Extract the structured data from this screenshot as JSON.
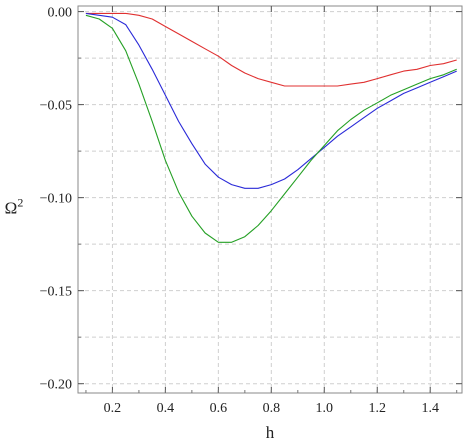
{
  "chart_data": {
    "type": "line",
    "title": "",
    "xlabel": "h",
    "ylabel_base": "Ω",
    "ylabel_sup": "2",
    "xlim": [
      0.07,
      1.52
    ],
    "ylim": [
      -0.205,
      0.003
    ],
    "xticks": [
      0.2,
      0.4,
      0.6,
      0.8,
      1.0,
      1.2,
      1.4
    ],
    "xtick_labels": [
      "0.2",
      "0.4",
      "0.6",
      "0.8",
      "1.0",
      "1.2",
      "1.4"
    ],
    "yticks": [
      0.0,
      -0.05,
      -0.1,
      -0.15,
      -0.2
    ],
    "ytick_labels": [
      "0.00",
      "−0.05",
      "−0.10",
      "−0.15",
      "−0.20"
    ],
    "grid": true,
    "series": [
      {
        "color": "#e03030",
        "x": [
          0.1,
          0.15,
          0.2,
          0.25,
          0.3,
          0.35,
          0.4,
          0.45,
          0.5,
          0.55,
          0.6,
          0.65,
          0.7,
          0.75,
          0.8,
          0.85,
          0.9,
          0.95,
          1.0,
          1.05,
          1.1,
          1.15,
          1.2,
          1.25,
          1.3,
          1.35,
          1.4,
          1.45,
          1.5
        ],
        "y": [
          -0.001,
          -0.001,
          -0.001,
          -0.001,
          -0.002,
          -0.004,
          -0.008,
          -0.012,
          -0.016,
          -0.02,
          -0.024,
          -0.029,
          -0.033,
          -0.036,
          -0.038,
          -0.04,
          -0.04,
          -0.04,
          -0.04,
          -0.04,
          -0.039,
          -0.038,
          -0.036,
          -0.034,
          -0.032,
          -0.031,
          -0.029,
          -0.028,
          -0.026
        ]
      },
      {
        "color": "#2a2ad8",
        "x": [
          0.1,
          0.15,
          0.2,
          0.25,
          0.3,
          0.35,
          0.4,
          0.45,
          0.5,
          0.55,
          0.6,
          0.65,
          0.7,
          0.75,
          0.8,
          0.85,
          0.9,
          0.95,
          1.0,
          1.05,
          1.1,
          1.15,
          1.2,
          1.25,
          1.3,
          1.35,
          1.4,
          1.45,
          1.5
        ],
        "y": [
          -0.001,
          -0.002,
          -0.003,
          -0.007,
          -0.018,
          -0.031,
          -0.045,
          -0.059,
          -0.071,
          -0.082,
          -0.089,
          -0.093,
          -0.095,
          -0.095,
          -0.093,
          -0.09,
          -0.085,
          -0.079,
          -0.073,
          -0.067,
          -0.062,
          -0.057,
          -0.052,
          -0.048,
          -0.044,
          -0.041,
          -0.038,
          -0.035,
          -0.032
        ]
      },
      {
        "color": "#25a025",
        "x": [
          0.1,
          0.15,
          0.2,
          0.25,
          0.3,
          0.35,
          0.4,
          0.45,
          0.5,
          0.55,
          0.6,
          0.65,
          0.7,
          0.75,
          0.8,
          0.85,
          0.9,
          0.95,
          1.0,
          1.05,
          1.1,
          1.15,
          1.2,
          1.25,
          1.3,
          1.35,
          1.4,
          1.45,
          1.5
        ],
        "y": [
          -0.002,
          -0.004,
          -0.009,
          -0.021,
          -0.039,
          -0.059,
          -0.08,
          -0.097,
          -0.11,
          -0.119,
          -0.124,
          -0.124,
          -0.121,
          -0.115,
          -0.107,
          -0.098,
          -0.089,
          -0.08,
          -0.072,
          -0.064,
          -0.058,
          -0.053,
          -0.049,
          -0.045,
          -0.042,
          -0.039,
          -0.036,
          -0.034,
          -0.031
        ]
      }
    ]
  }
}
